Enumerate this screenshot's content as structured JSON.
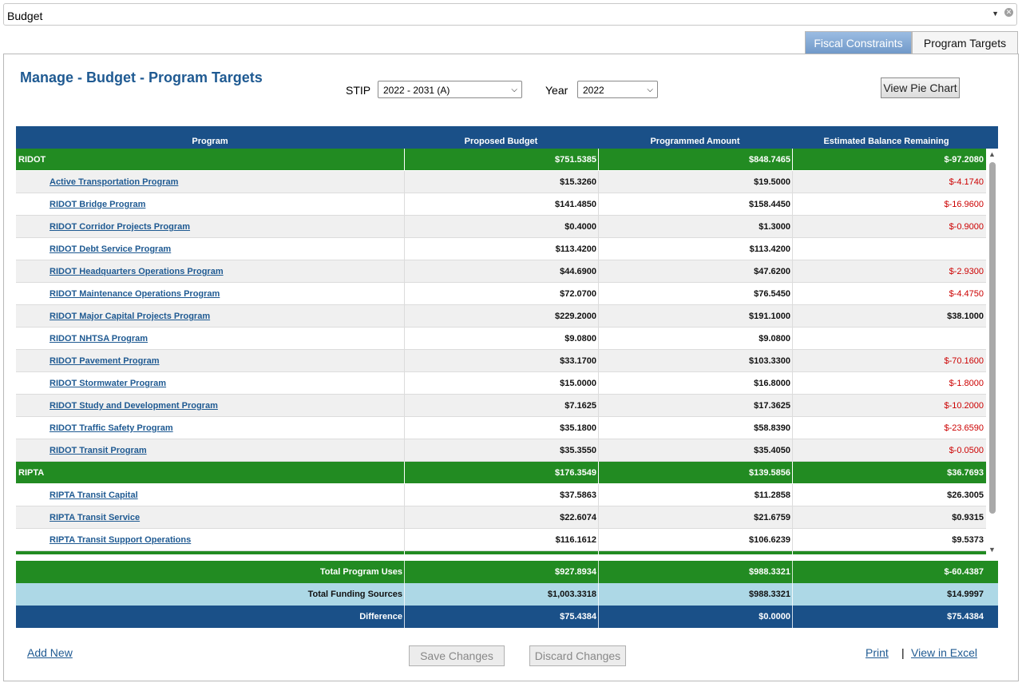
{
  "top_select": {
    "value": "Budget"
  },
  "tabs": [
    {
      "label": "Fiscal Constraints",
      "active": false
    },
    {
      "label": "Program Targets",
      "active": true
    }
  ],
  "header": {
    "title": "Manage - Budget - Program Targets",
    "stip_label": "STIP",
    "stip_value": "2022 - 2031 (A)",
    "year_label": "Year",
    "year_value": "2022",
    "pie_button": "View Pie Chart"
  },
  "table": {
    "columns": [
      "Program",
      "Proposed Budget",
      "Programmed Amount",
      "Estimated Balance Remaining"
    ],
    "rows": [
      {
        "type": "group",
        "program": "RIDOT",
        "budget": "$751.5385",
        "programmed": "$848.7465",
        "balance": "$-97.2080"
      },
      {
        "type": "item",
        "program": "Active Transportation Program",
        "budget": "$15.3260",
        "programmed": "$19.5000",
        "balance": "$-4.1740",
        "negative": true
      },
      {
        "type": "item",
        "program": "RIDOT Bridge Program",
        "budget": "$141.4850",
        "programmed": "$158.4450",
        "balance": "$-16.9600",
        "negative": true
      },
      {
        "type": "item",
        "program": "RIDOT Corridor Projects Program",
        "budget": "$0.4000",
        "programmed": "$1.3000",
        "balance": "$-0.9000",
        "negative": true
      },
      {
        "type": "item",
        "program": "RIDOT Debt Service Program",
        "budget": "$113.4200",
        "programmed": "$113.4200",
        "balance": "",
        "negative": false
      },
      {
        "type": "item",
        "program": "RIDOT Headquarters Operations Program",
        "budget": "$44.6900",
        "programmed": "$47.6200",
        "balance": "$-2.9300",
        "negative": true
      },
      {
        "type": "item",
        "program": "RIDOT Maintenance Operations Program",
        "budget": "$72.0700",
        "programmed": "$76.5450",
        "balance": "$-4.4750",
        "negative": true
      },
      {
        "type": "item",
        "program": "RIDOT Major Capital Projects Program",
        "budget": "$229.2000",
        "programmed": "$191.1000",
        "balance": "$38.1000",
        "negative": false
      },
      {
        "type": "item",
        "program": "RIDOT NHTSA Program",
        "budget": "$9.0800",
        "programmed": "$9.0800",
        "balance": "",
        "negative": false
      },
      {
        "type": "item",
        "program": "RIDOT Pavement Program",
        "budget": "$33.1700",
        "programmed": "$103.3300",
        "balance": "$-70.1600",
        "negative": true
      },
      {
        "type": "item",
        "program": "RIDOT Stormwater Program",
        "budget": "$15.0000",
        "programmed": "$16.8000",
        "balance": "$-1.8000",
        "negative": true
      },
      {
        "type": "item",
        "program": "RIDOT Study and Development Program",
        "budget": "$7.1625",
        "programmed": "$17.3625",
        "balance": "$-10.2000",
        "negative": true
      },
      {
        "type": "item",
        "program": "RIDOT Traffic Safety Program",
        "budget": "$35.1800",
        "programmed": "$58.8390",
        "balance": "$-23.6590",
        "negative": true
      },
      {
        "type": "item",
        "program": "RIDOT Transit Program",
        "budget": "$35.3550",
        "programmed": "$35.4050",
        "balance": "$-0.0500",
        "negative": true
      },
      {
        "type": "group",
        "program": "RIPTA",
        "budget": "$176.3549",
        "programmed": "$139.5856",
        "balance": "$36.7693"
      },
      {
        "type": "item",
        "program": "RIPTA Transit Capital",
        "budget": "$37.5863",
        "programmed": "$11.2858",
        "balance": "$26.3005",
        "negative": false
      },
      {
        "type": "item",
        "program": "RIPTA Transit Service",
        "budget": "$22.6074",
        "programmed": "$21.6759",
        "balance": "$0.9315",
        "negative": false
      },
      {
        "type": "item",
        "program": "RIPTA Transit Support Operations",
        "budget": "$116.1612",
        "programmed": "$106.6239",
        "balance": "$9.5373",
        "negative": false
      },
      {
        "type": "group",
        "program": "",
        "budget": "",
        "programmed": "",
        "balance": ""
      }
    ],
    "summary": [
      {
        "label": "Total Program Uses",
        "budget": "$927.8934",
        "programmed": "$988.3321",
        "balance": "$-60.4387"
      },
      {
        "label": "Total Funding Sources",
        "budget": "$1,003.3318",
        "programmed": "$988.3321",
        "balance": "$14.9997"
      },
      {
        "label": "Difference",
        "budget": "$75.4384",
        "programmed": "$0.0000",
        "balance": "$75.4384"
      }
    ]
  },
  "footer": {
    "add_new": "Add New",
    "save": "Save Changes",
    "discard": "Discard Changes",
    "print": "Print",
    "separator": "|",
    "excel": "View in Excel"
  },
  "colors": {
    "header_blue": "#1a5088",
    "group_green": "#228b22",
    "funding_lightblue": "#add8e6",
    "negative_red": "#cc0000",
    "link_blue": "#1f5a92"
  }
}
